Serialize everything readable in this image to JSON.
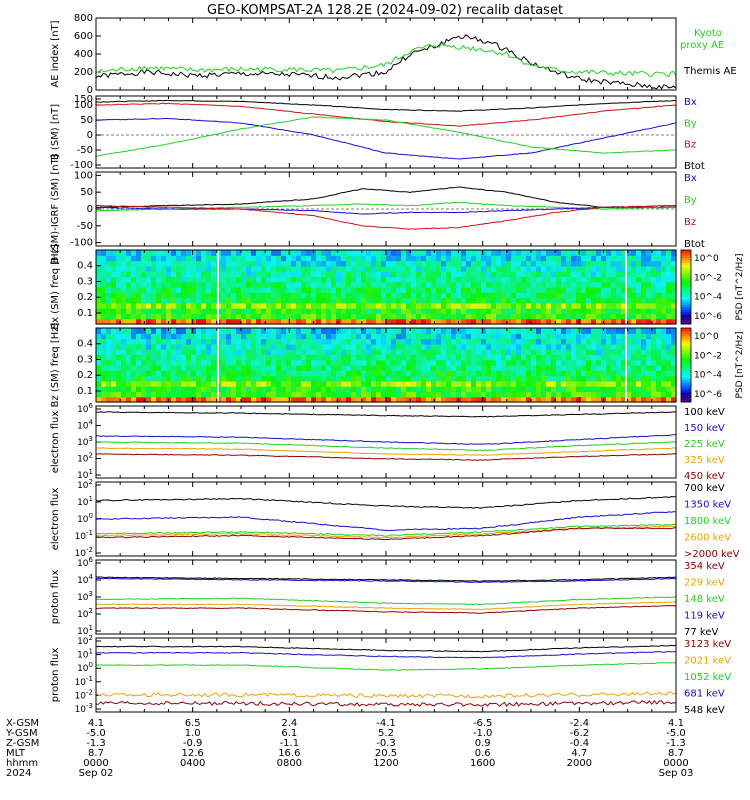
{
  "title": "GEO-KOMPSAT-2A 128.2E (2024-09-02) recalib dataset",
  "colors": {
    "black": "#000000",
    "blue": "#1010d0",
    "green": "#20d020",
    "red": "#d01010",
    "orange": "#f0a000",
    "darkred": "#900000"
  },
  "chart_data": [
    {
      "type": "line",
      "id": "ae",
      "ylabel": "AE index [nT]",
      "ylim": [
        0,
        800
      ],
      "yticks": [
        "800",
        "600",
        "400",
        "200",
        "0"
      ],
      "legend": [
        {
          "name": "Kyoto proxy AE",
          "color": "green"
        },
        {
          "name": "Themis AE",
          "color": "black"
        }
      ],
      "series": [
        {
          "name": "Themis AE",
          "color": "black",
          "x": [
            0,
            2,
            4,
            6,
            8,
            10,
            12,
            13,
            14,
            15,
            16,
            17,
            18,
            19,
            20,
            22,
            24
          ],
          "values": [
            150,
            200,
            160,
            180,
            170,
            140,
            200,
            400,
            480,
            600,
            550,
            450,
            300,
            200,
            120,
            60,
            20
          ]
        },
        {
          "name": "Kyoto proxy AE",
          "color": "green",
          "x": [
            0,
            2,
            4,
            6,
            8,
            10,
            12,
            13,
            14,
            15,
            16,
            17,
            18,
            19,
            20,
            22,
            24
          ],
          "values": [
            200,
            250,
            220,
            230,
            230,
            210,
            280,
            430,
            500,
            480,
            450,
            400,
            280,
            220,
            200,
            180,
            180
          ]
        }
      ]
    },
    {
      "type": "line",
      "id": "bsm",
      "ylabel": "B (SM) [nT]",
      "ylim": [
        -110,
        130
      ],
      "yticks": [
        "150",
        "100",
        "50",
        "0",
        "-50",
        "-100"
      ],
      "legend": [
        {
          "name": "Bx",
          "color": "blue"
        },
        {
          "name": "By",
          "color": "green"
        },
        {
          "name": "Bz",
          "color": "red"
        },
        {
          "name": "Btot",
          "color": "black"
        }
      ],
      "series": [
        {
          "name": "Btot",
          "color": "black",
          "x": [
            0,
            3,
            6,
            9,
            12,
            15,
            18,
            21,
            24
          ],
          "values": [
            110,
            115,
            112,
            100,
            85,
            80,
            90,
            105,
            115
          ]
        },
        {
          "name": "Bz",
          "color": "red",
          "x": [
            0,
            3,
            6,
            9,
            12,
            15,
            18,
            21,
            24
          ],
          "values": [
            100,
            105,
            95,
            70,
            45,
            30,
            50,
            80,
            100
          ]
        },
        {
          "name": "Bx",
          "color": "blue",
          "x": [
            0,
            3,
            6,
            9,
            12,
            15,
            18,
            21,
            24
          ],
          "values": [
            50,
            55,
            40,
            0,
            -60,
            -80,
            -60,
            -10,
            40
          ]
        },
        {
          "name": "By",
          "color": "green",
          "x": [
            0,
            3,
            6,
            9,
            12,
            15,
            18,
            21,
            24
          ],
          "values": [
            -70,
            -30,
            20,
            60,
            50,
            10,
            -40,
            -60,
            -50
          ]
        }
      ]
    },
    {
      "type": "line",
      "id": "bdiff",
      "ylabel": "B (SM)-IGRF (SM) [nT]",
      "ylim": [
        -110,
        110
      ],
      "yticks": [
        "100",
        "50",
        "0",
        "-50",
        "-100"
      ],
      "legend": [
        {
          "name": "Bx",
          "color": "blue"
        },
        {
          "name": "By",
          "color": "green"
        },
        {
          "name": "Bz",
          "color": "red"
        },
        {
          "name": "Btot",
          "color": "black"
        }
      ],
      "series": [
        {
          "name": "Btot",
          "color": "black",
          "x": [
            0,
            3,
            6,
            9,
            11,
            13,
            15,
            17,
            19,
            21,
            24
          ],
          "values": [
            5,
            10,
            15,
            30,
            60,
            50,
            65,
            50,
            20,
            5,
            5
          ]
        },
        {
          "name": "By",
          "color": "green",
          "x": [
            0,
            3,
            6,
            9,
            11,
            13,
            15,
            17,
            19,
            21,
            24
          ],
          "values": [
            -5,
            0,
            5,
            10,
            15,
            10,
            20,
            10,
            5,
            0,
            5
          ]
        },
        {
          "name": "Bx",
          "color": "blue",
          "x": [
            0,
            3,
            6,
            9,
            11,
            13,
            15,
            17,
            19,
            21,
            24
          ],
          "values": [
            5,
            0,
            0,
            -5,
            -15,
            -10,
            -10,
            -5,
            0,
            5,
            10
          ]
        },
        {
          "name": "Bz",
          "color": "red",
          "x": [
            0,
            3,
            6,
            9,
            11,
            13,
            15,
            17,
            19,
            21,
            24
          ],
          "values": [
            10,
            5,
            0,
            -20,
            -50,
            -60,
            -55,
            -35,
            -10,
            5,
            10
          ]
        }
      ]
    },
    {
      "type": "heatmap",
      "id": "spec_bx",
      "ylabel": "Bx (SM) freq [Hz]",
      "ylim": [
        0.03,
        0.5
      ],
      "yticks": [
        "0.4",
        "0.3",
        "0.2",
        "0.1"
      ],
      "colorbar": {
        "label": "PSD [nT^2/Hz]",
        "ticks": [
          "10^0",
          "10^-2",
          "10^-4",
          "10^-6"
        ]
      }
    },
    {
      "type": "heatmap",
      "id": "spec_bz",
      "ylabel": "Bz (SM) freq [Hz]",
      "ylim": [
        0.03,
        0.5
      ],
      "yticks": [
        "0.4",
        "0.3",
        "0.2",
        "0.1"
      ],
      "colorbar": {
        "label": "PSD [nT^2/Hz]",
        "ticks": [
          "10^0",
          "10^-2",
          "10^-4",
          "10^-6"
        ]
      }
    },
    {
      "type": "line",
      "id": "eflux1",
      "ylabel": "electron flux",
      "log": true,
      "ylim": [
        0,
        6
      ],
      "yticks": [
        "10^6",
        "10^4",
        "10^3",
        "10^2",
        "10^1"
      ],
      "legend": [
        {
          "name": "100 keV",
          "color": "black"
        },
        {
          "name": "150 keV",
          "color": "blue"
        },
        {
          "name": "225 keV",
          "color": "green"
        },
        {
          "name": "325 keV",
          "color": "orange"
        },
        {
          "name": "450 keV",
          "color": "darkred"
        }
      ],
      "series": [
        {
          "name": "100 keV",
          "color": "black",
          "x": [
            0,
            6,
            12,
            16,
            20,
            24
          ],
          "values": [
            5.5,
            5.4,
            5.2,
            5.1,
            5.3,
            5.5
          ]
        },
        {
          "name": "150 keV",
          "color": "blue",
          "x": [
            0,
            6,
            12,
            16,
            20,
            24
          ],
          "values": [
            3.5,
            3.4,
            3.0,
            2.8,
            3.2,
            3.6
          ]
        },
        {
          "name": "225 keV",
          "color": "green",
          "x": [
            0,
            6,
            12,
            16,
            20,
            24
          ],
          "values": [
            3.0,
            2.9,
            2.5,
            2.3,
            2.7,
            3.0
          ]
        },
        {
          "name": "325 keV",
          "color": "orange",
          "x": [
            0,
            6,
            12,
            16,
            20,
            24
          ],
          "values": [
            2.5,
            2.4,
            2.0,
            1.9,
            2.2,
            2.5
          ]
        },
        {
          "name": "450 keV",
          "color": "darkred",
          "x": [
            0,
            6,
            12,
            16,
            20,
            24
          ],
          "values": [
            2.0,
            1.9,
            1.6,
            1.5,
            1.8,
            2.0
          ]
        }
      ]
    },
    {
      "type": "line",
      "id": "eflux2",
      "ylabel": "electron flux",
      "log": true,
      "ylim": [
        -2,
        2
      ],
      "yticks": [
        "10^2",
        "10^1",
        "10^0",
        "10^-1",
        "10^-2"
      ],
      "legend": [
        {
          "name": "700 keV",
          "color": "black"
        },
        {
          "name": "1350 keV",
          "color": "blue"
        },
        {
          "name": "1800 keV",
          "color": "green"
        },
        {
          "name": "2600 keV",
          "color": "orange"
        },
        {
          "name": ">2000 keV",
          "color": "darkred"
        }
      ],
      "series": [
        {
          "name": "700 keV",
          "color": "black",
          "x": [
            0,
            6,
            12,
            16,
            20,
            24
          ],
          "values": [
            1.0,
            1.1,
            0.7,
            0.6,
            1.0,
            1.2
          ]
        },
        {
          "name": "1350 keV",
          "color": "blue",
          "x": [
            0,
            6,
            12,
            16,
            20,
            24
          ],
          "values": [
            0.0,
            0.1,
            -0.6,
            -0.5,
            0.1,
            0.4
          ]
        },
        {
          "name": "1800 keV",
          "color": "green",
          "x": [
            0,
            6,
            12,
            16,
            20,
            24
          ],
          "values": [
            -0.8,
            -0.7,
            -0.9,
            -0.7,
            -0.4,
            -0.3
          ]
        },
        {
          "name": "2600 keV",
          "color": "orange",
          "x": [
            0,
            6,
            12,
            16,
            20,
            24
          ],
          "values": [
            -0.9,
            -0.8,
            -1.0,
            -0.8,
            -0.5,
            -0.4
          ]
        },
        {
          "name": ">2000 keV",
          "color": "darkred",
          "x": [
            0,
            6,
            12,
            16,
            20,
            24
          ],
          "values": [
            -1.0,
            -0.9,
            -1.1,
            -0.9,
            -0.5,
            -0.5
          ]
        }
      ]
    },
    {
      "type": "line",
      "id": "pflux1",
      "ylabel": "proton flux",
      "log": true,
      "ylim": [
        0,
        6
      ],
      "yticks": [
        "10^6",
        "10^4",
        "10^3",
        "10^2",
        "10^1"
      ],
      "legend": [
        {
          "name": "354 keV",
          "color": "darkred"
        },
        {
          "name": "229 keV",
          "color": "orange"
        },
        {
          "name": "148 keV",
          "color": "green"
        },
        {
          "name": "119 keV",
          "color": "blue"
        },
        {
          "name": "77 keV",
          "color": "black"
        }
      ],
      "series": [
        {
          "name": "77 keV",
          "color": "black",
          "x": [
            0,
            6,
            12,
            16,
            20,
            24
          ],
          "values": [
            4.6,
            4.5,
            4.4,
            4.3,
            4.4,
            4.6
          ]
        },
        {
          "name": "119 keV",
          "color": "blue",
          "x": [
            0,
            6,
            12,
            16,
            20,
            24
          ],
          "values": [
            4.5,
            4.4,
            4.3,
            4.2,
            4.3,
            4.5
          ]
        },
        {
          "name": "148 keV",
          "color": "green",
          "x": [
            0,
            6,
            12,
            16,
            20,
            24
          ],
          "values": [
            2.8,
            2.9,
            2.5,
            2.4,
            2.8,
            3.0
          ]
        },
        {
          "name": "229 keV",
          "color": "orange",
          "x": [
            0,
            6,
            12,
            16,
            20,
            24
          ],
          "values": [
            2.4,
            2.4,
            2.1,
            2.0,
            2.4,
            2.6
          ]
        },
        {
          "name": "354 keV",
          "color": "darkred",
          "x": [
            0,
            6,
            12,
            16,
            20,
            24
          ],
          "values": [
            2.1,
            2.1,
            1.8,
            1.7,
            2.1,
            2.3
          ]
        }
      ]
    },
    {
      "type": "line",
      "id": "pflux2",
      "ylabel": "proton flux",
      "log": true,
      "ylim": [
        -4,
        2
      ],
      "yticks": [
        "10^2",
        "10^1",
        "10^0",
        "10^-1",
        "10^-2",
        "10^-3"
      ],
      "legend": [
        {
          "name": "3123 keV",
          "color": "darkred"
        },
        {
          "name": "2021 keV",
          "color": "orange"
        },
        {
          "name": "1052 keV",
          "color": "green"
        },
        {
          "name": "681 keV",
          "color": "blue"
        },
        {
          "name": "548 keV",
          "color": "black"
        }
      ],
      "series": [
        {
          "name": "548 keV",
          "color": "black",
          "x": [
            0,
            6,
            12,
            16,
            20,
            24
          ],
          "values": [
            1.3,
            1.3,
            1.0,
            0.9,
            1.2,
            1.4
          ]
        },
        {
          "name": "681 keV",
          "color": "blue",
          "x": [
            0,
            6,
            12,
            16,
            20,
            24
          ],
          "values": [
            0.8,
            0.8,
            0.5,
            0.4,
            0.7,
            0.9
          ]
        },
        {
          "name": "1052 keV",
          "color": "green",
          "x": [
            0,
            6,
            12,
            16,
            20,
            24
          ],
          "values": [
            -0.2,
            -0.2,
            -0.6,
            -0.5,
            -0.2,
            0.0
          ]
        },
        {
          "name": "2021 keV",
          "color": "orange",
          "x": [
            0,
            6,
            12,
            16,
            20,
            24
          ],
          "values": [
            -2.6,
            -2.6,
            -2.7,
            -2.7,
            -2.6,
            -2.5
          ]
        },
        {
          "name": "3123 keV",
          "color": "darkred",
          "x": [
            0,
            6,
            12,
            16,
            20,
            24
          ],
          "values": [
            -3.3,
            -3.3,
            -3.4,
            -3.4,
            -3.3,
            -3.2
          ]
        }
      ]
    }
  ],
  "ephemeris": {
    "labels": [
      "X-GSM",
      "Y-GSM",
      "Z-GSM",
      "MLT",
      "hhmm",
      "2024"
    ],
    "columns": [
      [
        "4.1",
        "-5.0",
        "-1.3",
        "8.7",
        "0000",
        "Sep 02"
      ],
      [
        "6.5",
        "1.0",
        "-0.9",
        "12.6",
        "0400",
        ""
      ],
      [
        "2.4",
        "6.1",
        "-1.1",
        "16.6",
        "0800",
        ""
      ],
      [
        "-4.1",
        "5.2",
        "-0.3",
        "20.5",
        "1200",
        ""
      ],
      [
        "-6.5",
        "-1.0",
        "0.9",
        "0.6",
        "1600",
        ""
      ],
      [
        "-2.4",
        "-6.2",
        "-0.4",
        "4.7",
        "2000",
        ""
      ],
      [
        "4.1",
        "-5.0",
        "-1.3",
        "8.7",
        "0000",
        "Sep 03"
      ]
    ]
  }
}
